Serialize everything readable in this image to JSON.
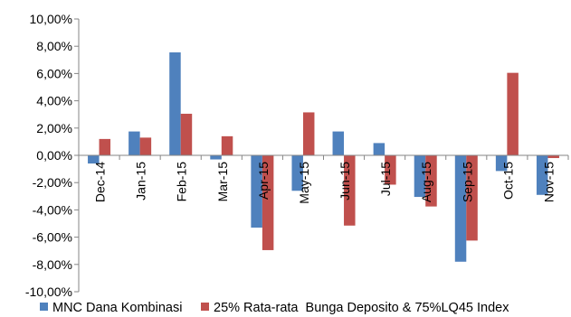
{
  "chart_data": {
    "type": "bar",
    "title": "",
    "xlabel": "",
    "ylabel": "",
    "ylim": [
      -10,
      10
    ],
    "y_ticks": [
      10,
      8,
      6,
      4,
      2,
      0,
      -2,
      -4,
      -6,
      -8,
      -10
    ],
    "y_tick_labels": [
      "10,00%",
      "8,00%",
      "6,00%",
      "4,00%",
      "2,00%",
      "0,00%",
      "-2,00%",
      "-4,00%",
      "-6,00%",
      "-8,00%",
      "-10,00%"
    ],
    "grid": false,
    "legend_position": "bottom",
    "categories": [
      "Dec-14",
      "Jan-15",
      "Feb-15",
      "Mar-15",
      "Apr-15",
      "May-15",
      "Jun-15",
      "Jul-15",
      "Aug-15",
      "Sep-15",
      "Oct-15",
      "Nov-15"
    ],
    "series": [
      {
        "name": "MNC Dana Kombinasi",
        "color": "#4F81BD",
        "values": [
          -0.6,
          1.75,
          7.55,
          -0.3,
          -5.3,
          -2.6,
          1.75,
          0.9,
          -3.05,
          -7.8,
          -1.15,
          -2.9
        ]
      },
      {
        "name": "25% Rata-rata  Bunga Deposito & 75%LQ45 Index",
        "color": "#C0504D",
        "values": [
          1.2,
          1.3,
          3.05,
          1.4,
          -6.95,
          3.15,
          -5.15,
          -2.15,
          -3.75,
          -6.25,
          6.05,
          -0.2
        ]
      }
    ]
  }
}
